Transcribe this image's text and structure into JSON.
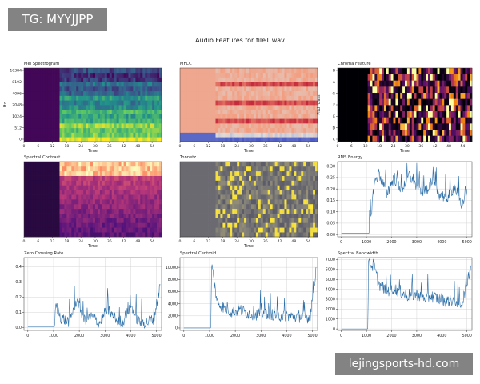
{
  "watermarks": {
    "top": "TG: MYYJJPP",
    "bottom": "lejingsports-hd.com"
  },
  "figure": {
    "title": "Audio Features for file1.wav"
  },
  "colors": {
    "line": "#2b6ea8",
    "grid": "#cccccc",
    "axis": "#333333"
  },
  "chart_data": [
    {
      "type": "heatmap",
      "title": "Mel Spectrogram",
      "xlabel": "Time",
      "ylabel": "Hz",
      "colormap": "viridis",
      "x_ticks": [
        "0",
        "6",
        "12",
        "18",
        "24",
        "30",
        "36",
        "42",
        "48",
        "54"
      ],
      "y_ticks": [
        "0",
        "512",
        "1024",
        "2048",
        "4096",
        "8192",
        "16384"
      ],
      "xlim": [
        0,
        58
      ],
      "silence_until": 14.5
    },
    {
      "type": "heatmap",
      "title": "MFCC",
      "xlabel": "Time",
      "ylabel": "",
      "colormap": "coolwarm",
      "x_ticks": [
        "0",
        "6",
        "12",
        "18",
        "24",
        "30",
        "36",
        "42",
        "48",
        "54"
      ],
      "y_ticks": [],
      "xlim": [
        0,
        58
      ],
      "silence_until": 14.5
    },
    {
      "type": "heatmap",
      "title": "Chroma Feature",
      "xlabel": "Time",
      "ylabel": "Pitch class",
      "colormap": "inferno",
      "x_ticks": [
        "0",
        "6",
        "12",
        "18",
        "24",
        "30",
        "36",
        "42",
        "48",
        "54"
      ],
      "y_ticks": [
        "C",
        "D",
        "E",
        "F",
        "G",
        "A",
        "B"
      ],
      "xlim": [
        0,
        58
      ],
      "silence_until": 12.5
    },
    {
      "type": "heatmap",
      "title": "Spectral Contrast",
      "xlabel": "Time",
      "ylabel": "",
      "colormap": "magma",
      "x_ticks": [
        "0",
        "6",
        "12",
        "18",
        "24",
        "30",
        "36",
        "42",
        "48",
        "54"
      ],
      "y_ticks": [],
      "xlim": [
        0,
        58
      ],
      "silence_until": 14.5
    },
    {
      "type": "heatmap",
      "title": "Tonnetz",
      "xlabel": "Time",
      "ylabel": "",
      "colormap": "cividis",
      "x_ticks": [
        "0",
        "6",
        "12",
        "18",
        "24",
        "30",
        "36",
        "42",
        "48",
        "54"
      ],
      "y_ticks": [],
      "xlim": [
        0,
        58
      ],
      "silence_until": 14.5
    },
    {
      "type": "line",
      "title": "RMS Energy",
      "xlabel": "",
      "ylabel": "",
      "x_ticks": [
        "0",
        "1000",
        "2000",
        "3000",
        "4000",
        "5000"
      ],
      "y_ticks": [
        "0.00",
        "0.05",
        "0.10",
        "0.15",
        "0.20",
        "0.25",
        "0.30"
      ],
      "xlim": [
        -150,
        5200
      ],
      "ylim": [
        -0.01,
        0.32
      ],
      "grid": true,
      "series": [
        {
          "x": [
            0,
            1100,
            1140,
            1300,
            1500,
            1800,
            2100,
            2400,
            2700,
            3000,
            3300,
            3600,
            3900,
            4200,
            4500,
            4800,
            5000
          ],
          "y": [
            0.005,
            0.005,
            0.04,
            0.22,
            0.27,
            0.18,
            0.25,
            0.2,
            0.26,
            0.21,
            0.19,
            0.23,
            0.18,
            0.16,
            0.21,
            0.13,
            0.2
          ]
        }
      ]
    },
    {
      "type": "line",
      "title": "Zero Crossing Rate",
      "xlabel": "",
      "ylabel": "",
      "x_ticks": [
        "0",
        "1000",
        "2000",
        "3000",
        "4000",
        "5000"
      ],
      "y_ticks": [
        "0.0",
        "0.1",
        "0.2",
        "0.3",
        "0.4"
      ],
      "xlim": [
        -150,
        5200
      ],
      "ylim": [
        -0.02,
        0.46
      ],
      "grid": true,
      "series": [
        {
          "x": [
            0,
            1050,
            1080,
            1300,
            1600,
            1900,
            2200,
            2500,
            2800,
            3100,
            3400,
            3700,
            4000,
            4300,
            4600,
            4900,
            5150
          ],
          "y": [
            0.005,
            0.005,
            0.15,
            0.06,
            0.04,
            0.18,
            0.05,
            0.07,
            0.03,
            0.12,
            0.05,
            0.04,
            0.14,
            0.04,
            0.03,
            0.06,
            0.28
          ]
        }
      ]
    },
    {
      "type": "line",
      "title": "Spectral Centroid",
      "xlabel": "",
      "ylabel": "",
      "x_ticks": [
        "0",
        "1000",
        "2000",
        "3000",
        "4000",
        "5000"
      ],
      "y_ticks": [
        "0",
        "2000",
        "4000",
        "6000",
        "8000",
        "10000"
      ],
      "xlim": [
        -150,
        5200
      ],
      "ylim": [
        -400,
        11600
      ],
      "grid": true,
      "series": [
        {
          "x": [
            0,
            1050,
            1080,
            1300,
            1600,
            1900,
            2200,
            2500,
            2800,
            3100,
            3400,
            3700,
            4000,
            4300,
            4600,
            4900,
            5150
          ],
          "y": [
            0,
            0,
            10500,
            4200,
            3200,
            2600,
            3000,
            2400,
            2200,
            2600,
            2300,
            2000,
            2100,
            1800,
            1900,
            1700,
            10000
          ]
        }
      ]
    },
    {
      "type": "line",
      "title": "Spectral Bandwidth",
      "xlabel": "",
      "ylabel": "",
      "x_ticks": [
        "0",
        "1000",
        "2000",
        "3000",
        "4000",
        "5000"
      ],
      "y_ticks": [
        "0",
        "1000",
        "2000",
        "3000",
        "4000",
        "5000",
        "6000",
        "7000"
      ],
      "xlim": [
        -150,
        5200
      ],
      "ylim": [
        -150,
        7200
      ],
      "grid": true,
      "series": [
        {
          "x": [
            0,
            1050,
            1080,
            1300,
            1500,
            1800,
            2100,
            2400,
            2700,
            3000,
            3300,
            3600,
            3900,
            4200,
            4500,
            4800,
            5150
          ],
          "y": [
            0,
            0,
            6600,
            6300,
            4500,
            3800,
            4100,
            3600,
            3300,
            3500,
            3100,
            3300,
            3000,
            2800,
            2900,
            2500,
            6400
          ]
        }
      ]
    }
  ]
}
